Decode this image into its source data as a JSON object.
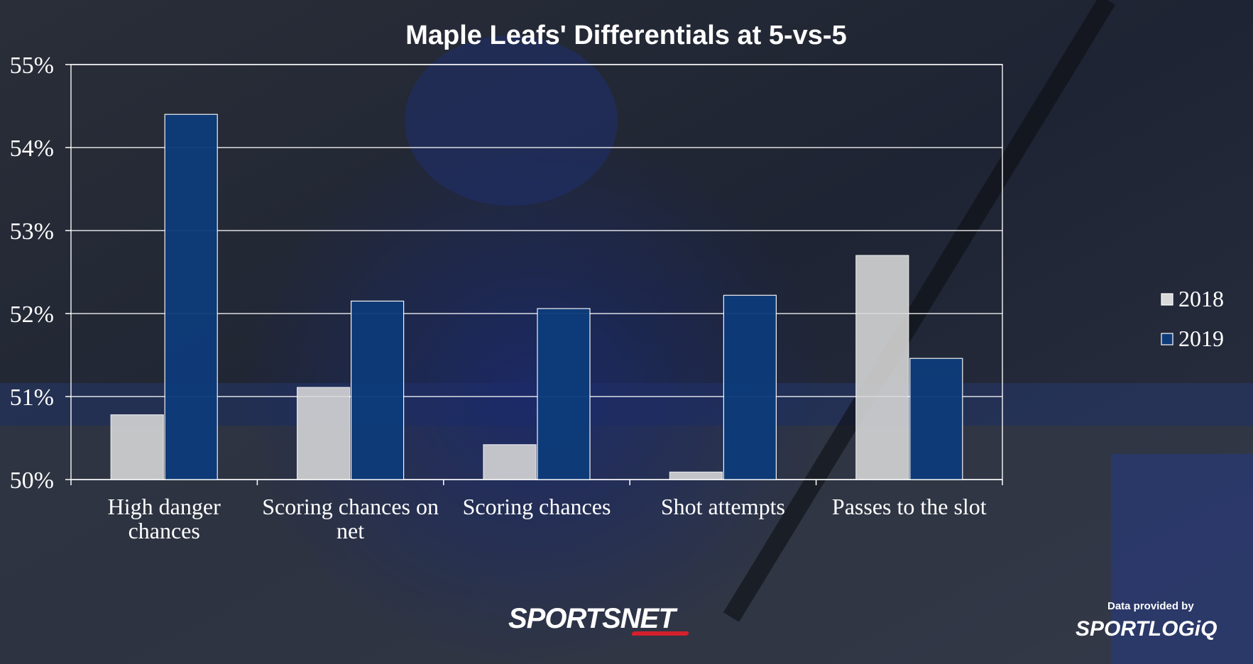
{
  "chart_data": {
    "type": "bar",
    "title": "Maple Leafs' Differentials at 5-vs-5",
    "categories": [
      [
        "High danger",
        "chances"
      ],
      [
        "Scoring chances on",
        "net"
      ],
      [
        "Scoring chances"
      ],
      [
        "Shot attempts"
      ],
      [
        "Passes to the slot"
      ]
    ],
    "series": [
      {
        "name": "2018",
        "color": "#d9d9d9",
        "values": [
          50.78,
          51.11,
          50.42,
          50.09,
          52.7
        ]
      },
      {
        "name": "2019",
        "color": "#0d3b7a",
        "values": [
          54.4,
          52.15,
          52.06,
          52.22,
          51.46
        ]
      }
    ],
    "ylim": [
      50,
      55
    ],
    "yticks": [
      "50%",
      "51%",
      "52%",
      "53%",
      "54%",
      "55%"
    ],
    "grid": true,
    "legend_position": "right"
  },
  "branding": {
    "network": "SPORTSNET",
    "credit": "Data provided by",
    "provider": "SPORTLOGiQ"
  }
}
